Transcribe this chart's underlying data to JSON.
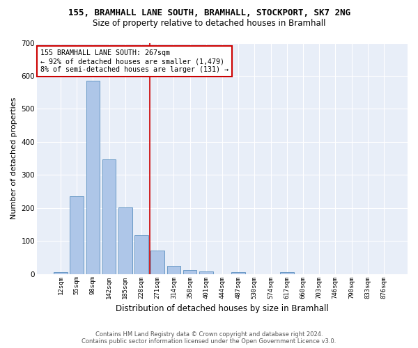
{
  "title1": "155, BRAMHALL LANE SOUTH, BRAMHALL, STOCKPORT, SK7 2NG",
  "title2": "Size of property relative to detached houses in Bramhall",
  "xlabel": "Distribution of detached houses by size in Bramhall",
  "ylabel": "Number of detached properties",
  "footnote1": "Contains HM Land Registry data © Crown copyright and database right 2024.",
  "footnote2": "Contains public sector information licensed under the Open Government Licence v3.0.",
  "bar_labels": [
    "12sqm",
    "55sqm",
    "98sqm",
    "142sqm",
    "185sqm",
    "228sqm",
    "271sqm",
    "314sqm",
    "358sqm",
    "401sqm",
    "444sqm",
    "487sqm",
    "530sqm",
    "574sqm",
    "617sqm",
    "660sqm",
    "703sqm",
    "746sqm",
    "790sqm",
    "833sqm",
    "876sqm"
  ],
  "bar_values": [
    5,
    236,
    585,
    347,
    202,
    117,
    70,
    25,
    12,
    8,
    0,
    6,
    0,
    0,
    5,
    0,
    0,
    0,
    0,
    0,
    0
  ],
  "bar_color": "#aec6e8",
  "bar_edge_color": "#5a8fc0",
  "background_color": "#e8eef8",
  "grid_color": "#ffffff",
  "vline_color": "#cc0000",
  "annotation_text": "155 BRAMHALL LANE SOUTH: 267sqm\n← 92% of detached houses are smaller (1,479)\n8% of semi-detached houses are larger (131) →",
  "annotation_box_color": "#ffffff",
  "annotation_box_edge": "#cc0000",
  "ylim": [
    0,
    700
  ],
  "yticks": [
    0,
    100,
    200,
    300,
    400,
    500,
    600,
    700
  ],
  "vline_position": 5.5
}
